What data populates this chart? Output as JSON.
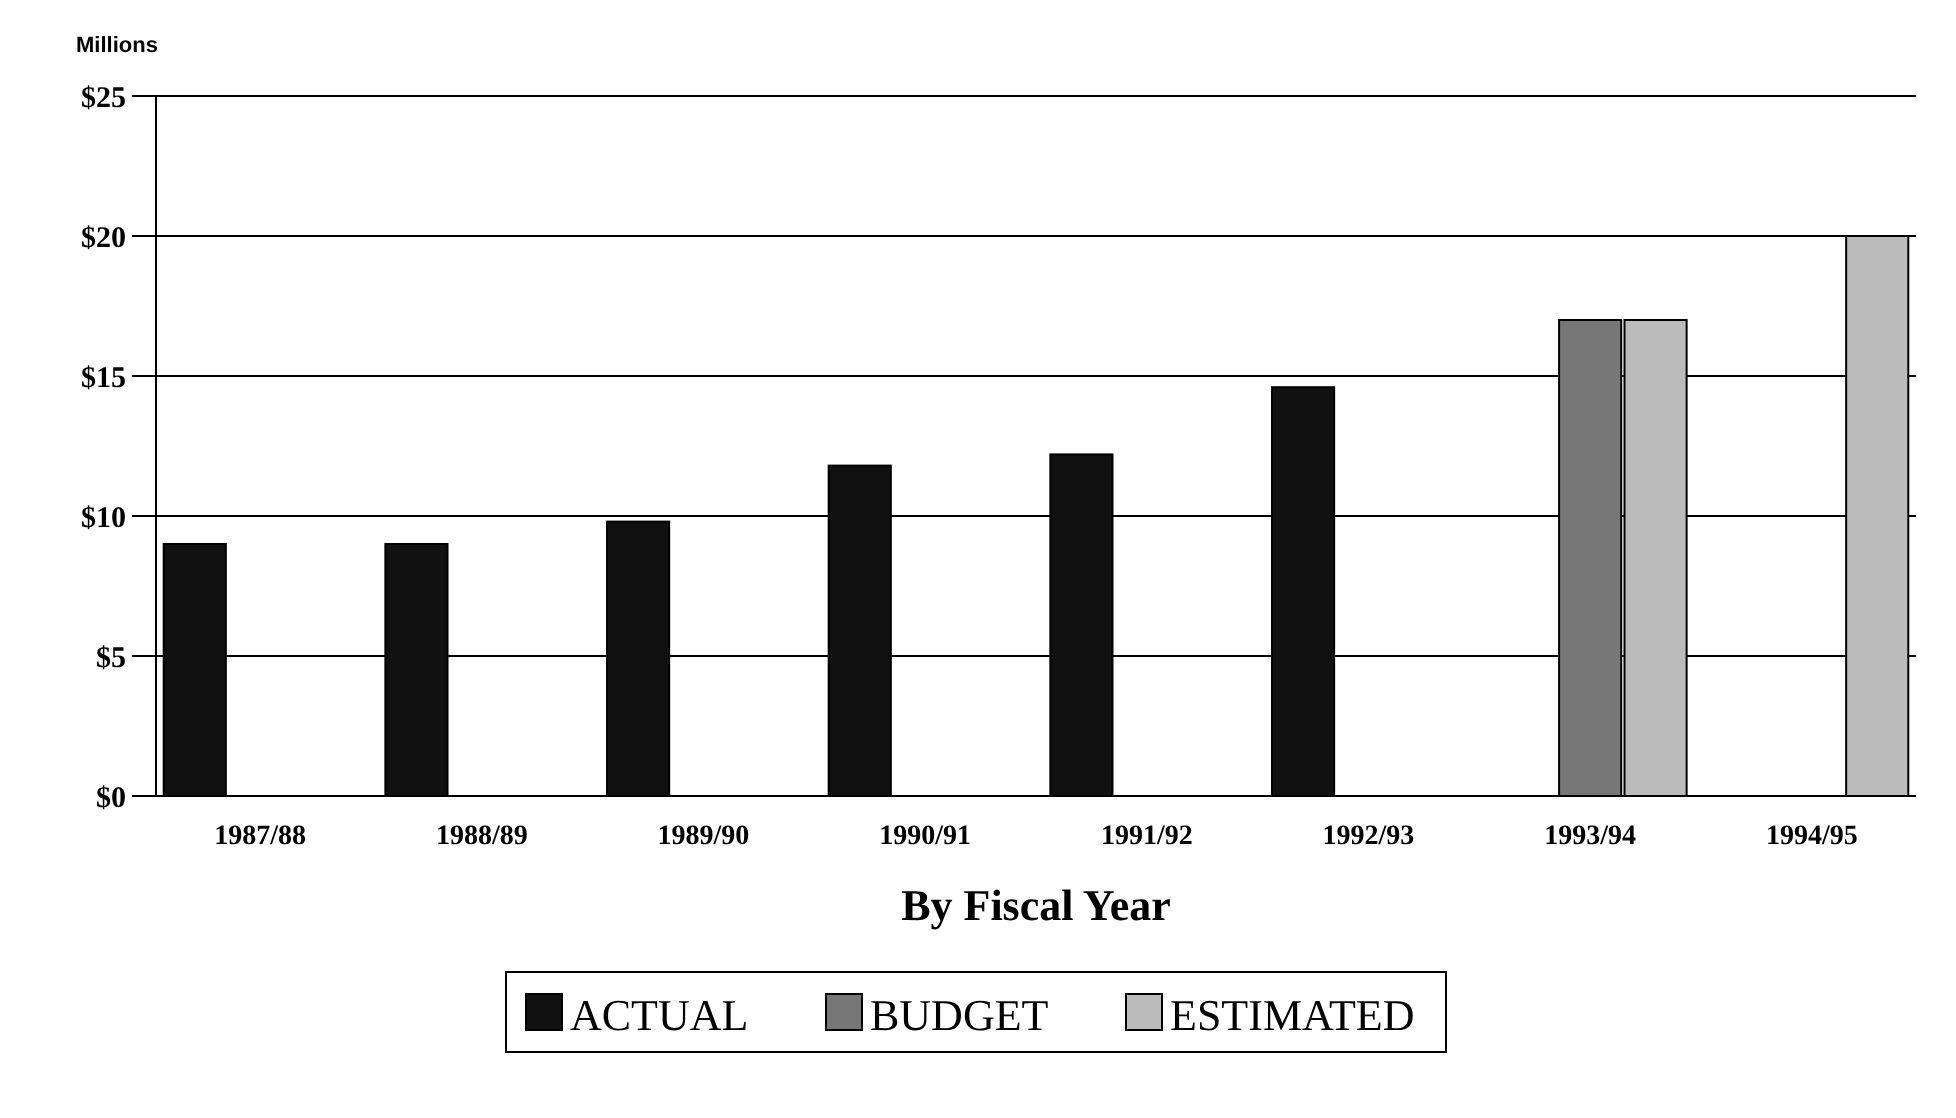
{
  "chart_data": {
    "type": "bar",
    "xlabel": "By Fiscal Year",
    "ylabel": "Millions",
    "categories": [
      "1987/88",
      "1988/89",
      "1989/90",
      "1990/91",
      "1991/92",
      "1992/93",
      "1993/94",
      "1994/95"
    ],
    "series": [
      {
        "name": "ACTUAL",
        "color": "#111111",
        "values": [
          9,
          9,
          9.8,
          11.8,
          12.2,
          14.6,
          null,
          null
        ]
      },
      {
        "name": "BUDGET",
        "color": "#777777",
        "values": [
          null,
          null,
          null,
          null,
          null,
          null,
          17,
          null
        ]
      },
      {
        "name": "ESTIMATED",
        "color": "#bbbbbb",
        "values": [
          null,
          null,
          null,
          null,
          null,
          null,
          17,
          20
        ]
      }
    ],
    "ylim": [
      0,
      25
    ],
    "yticks": [
      {
        "value": 0,
        "label": "$0"
      },
      {
        "value": 5,
        "label": "$5"
      },
      {
        "value": 10,
        "label": "$10"
      },
      {
        "value": 15,
        "label": "$15"
      },
      {
        "value": 20,
        "label": "$20"
      },
      {
        "value": 25,
        "label": "$25"
      }
    ],
    "grid": "y",
    "legend": "bottom"
  }
}
